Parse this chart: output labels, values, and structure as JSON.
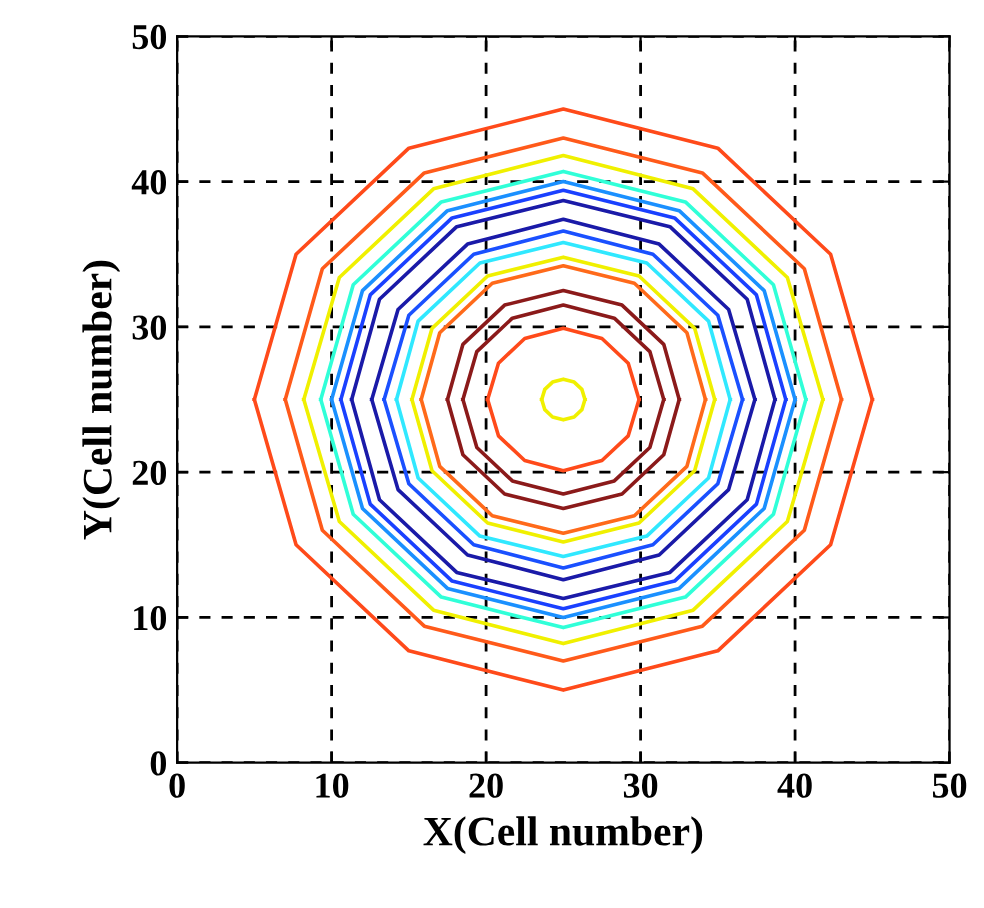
{
  "chart_data": {
    "type": "line",
    "xlabel": "X(Cell number)",
    "ylabel": "Y(Cell number)",
    "xlim": [
      0,
      50
    ],
    "ylim": [
      0,
      50
    ],
    "xticks": [
      0,
      10,
      20,
      30,
      40,
      50
    ],
    "yticks": [
      0,
      10,
      20,
      30,
      40,
      50
    ],
    "grid": true,
    "series": [
      {
        "color": "#ff4a1a",
        "x": [
          5,
          7.7,
          15,
          25,
          35,
          42.3,
          45
        ],
        "values": [
          25,
          35,
          42.3,
          45,
          42.3,
          35,
          25
        ]
      },
      {
        "color": "#ff4a1a",
        "x": [
          5,
          7.7,
          15,
          25,
          35,
          42.3,
          45
        ],
        "values": [
          25,
          15,
          7.7,
          5,
          7.7,
          15,
          25
        ]
      },
      {
        "color": "#ff5a1a",
        "x": [
          7,
          9.4,
          16,
          25,
          34,
          40.6,
          43
        ],
        "values": [
          25,
          34,
          40.6,
          43,
          40.6,
          34,
          25
        ]
      },
      {
        "color": "#ff5a1a",
        "x": [
          7,
          9.4,
          16,
          25,
          34,
          40.6,
          43
        ],
        "values": [
          25,
          16,
          9.4,
          7,
          9.4,
          16,
          25
        ]
      },
      {
        "color": "#f0f000",
        "x": [
          8.2,
          10.5,
          16.6,
          25,
          33.4,
          39.5,
          41.8
        ],
        "values": [
          25,
          33.4,
          39.5,
          41.8,
          39.5,
          33.4,
          25
        ]
      },
      {
        "color": "#f0f000",
        "x": [
          8.2,
          10.5,
          16.6,
          25,
          33.4,
          39.5,
          41.8
        ],
        "values": [
          25,
          16.6,
          10.5,
          8.2,
          10.5,
          16.6,
          25
        ]
      },
      {
        "color": "#30ffd8",
        "x": [
          9.3,
          11.4,
          17.1,
          25,
          32.9,
          38.6,
          40.7
        ],
        "values": [
          25,
          32.9,
          38.6,
          40.7,
          38.6,
          32.9,
          25
        ]
      },
      {
        "color": "#30ffd8",
        "x": [
          9.3,
          11.4,
          17.1,
          25,
          32.9,
          38.6,
          40.7
        ],
        "values": [
          25,
          17.1,
          11.4,
          9.3,
          11.4,
          17.1,
          25
        ]
      },
      {
        "color": "#1a90ff",
        "x": [
          10,
          12,
          17.5,
          25,
          32.5,
          38,
          40
        ],
        "values": [
          25,
          32.5,
          38,
          40,
          38,
          32.5,
          25
        ]
      },
      {
        "color": "#1a90ff",
        "x": [
          10,
          12,
          17.5,
          25,
          32.5,
          38,
          40
        ],
        "values": [
          25,
          17.5,
          12,
          10,
          12,
          17.5,
          25
        ]
      },
      {
        "color": "#1a40ff",
        "x": [
          10.6,
          12.5,
          17.8,
          25,
          32.2,
          37.5,
          39.4
        ],
        "values": [
          25,
          32.2,
          37.5,
          39.4,
          37.5,
          32.2,
          25
        ]
      },
      {
        "color": "#1a40ff",
        "x": [
          10.6,
          12.5,
          17.8,
          25,
          32.2,
          37.5,
          39.4
        ],
        "values": [
          25,
          17.8,
          12.5,
          10.6,
          12.5,
          17.8,
          25
        ]
      },
      {
        "color": "#1a1aa8",
        "x": [
          11.3,
          13.1,
          18.1,
          25,
          31.9,
          36.9,
          38.7
        ],
        "values": [
          25,
          31.9,
          36.9,
          38.7,
          36.9,
          31.9,
          25
        ]
      },
      {
        "color": "#1a1aa8",
        "x": [
          11.3,
          13.1,
          18.1,
          25,
          31.9,
          36.9,
          38.7
        ],
        "values": [
          25,
          18.1,
          13.1,
          11.3,
          13.1,
          18.1,
          25
        ]
      },
      {
        "color": "#1a1aa8",
        "x": [
          12.6,
          14.3,
          18.8,
          25,
          31.2,
          35.7,
          37.4
        ],
        "values": [
          25,
          31.2,
          35.7,
          37.4,
          35.7,
          31.2,
          25
        ]
      },
      {
        "color": "#1a1aa8",
        "x": [
          12.6,
          14.3,
          18.8,
          25,
          31.2,
          35.7,
          37.4
        ],
        "values": [
          25,
          18.8,
          14.3,
          12.6,
          14.3,
          18.8,
          25
        ]
      },
      {
        "color": "#1a50ff",
        "x": [
          13.4,
          15,
          19.2,
          25,
          30.8,
          35,
          36.6
        ],
        "values": [
          25,
          30.8,
          35,
          36.6,
          35,
          30.8,
          25
        ]
      },
      {
        "color": "#1a50ff",
        "x": [
          13.4,
          15,
          19.2,
          25,
          30.8,
          35,
          36.6
        ],
        "values": [
          25,
          19.2,
          15,
          13.4,
          15,
          19.2,
          25
        ]
      },
      {
        "color": "#30e8ff",
        "x": [
          14.2,
          15.6,
          19.6,
          25,
          30.4,
          34.4,
          35.8
        ],
        "values": [
          25,
          30.4,
          34.4,
          35.8,
          34.4,
          30.4,
          25
        ]
      },
      {
        "color": "#30e8ff",
        "x": [
          14.2,
          15.6,
          19.6,
          25,
          30.4,
          34.4,
          35.8
        ],
        "values": [
          25,
          19.6,
          15.6,
          14.2,
          15.6,
          19.6,
          25
        ]
      },
      {
        "color": "#f0f000",
        "x": [
          15.2,
          16.5,
          20.1,
          25,
          29.9,
          33.5,
          34.8
        ],
        "values": [
          25,
          29.9,
          33.5,
          34.8,
          33.5,
          29.9,
          25
        ]
      },
      {
        "color": "#f0f000",
        "x": [
          15.2,
          16.5,
          20.1,
          25,
          29.9,
          33.5,
          34.8
        ],
        "values": [
          25,
          20.1,
          16.5,
          15.2,
          16.5,
          20.1,
          25
        ]
      },
      {
        "color": "#ff6a1a",
        "x": [
          15.8,
          17,
          20.4,
          25,
          29.6,
          33,
          34.2
        ],
        "values": [
          25,
          29.6,
          33,
          34.2,
          33,
          29.6,
          25
        ]
      },
      {
        "color": "#ff6a1a",
        "x": [
          15.8,
          17,
          20.4,
          25,
          29.6,
          33,
          34.2
        ],
        "values": [
          25,
          20.4,
          17,
          15.8,
          17,
          20.4,
          25
        ]
      },
      {
        "color": "#8b1a1a",
        "x": [
          17.5,
          18.5,
          21.2,
          25,
          28.8,
          31.5,
          32.5
        ],
        "values": [
          25,
          28.8,
          31.5,
          32.5,
          31.5,
          28.8,
          25
        ]
      },
      {
        "color": "#8b1a1a",
        "x": [
          17.5,
          18.5,
          21.2,
          25,
          28.8,
          31.5,
          32.5
        ],
        "values": [
          25,
          21.2,
          18.5,
          17.5,
          18.5,
          21.2,
          25
        ]
      },
      {
        "color": "#8b1a1a",
        "x": [
          18.5,
          19.4,
          21.7,
          25,
          28.3,
          30.6,
          31.5
        ],
        "values": [
          25,
          28.3,
          30.6,
          31.5,
          30.6,
          28.3,
          25
        ]
      },
      {
        "color": "#8b1a1a",
        "x": [
          18.5,
          19.4,
          21.7,
          25,
          28.3,
          30.6,
          31.5
        ],
        "values": [
          25,
          21.7,
          19.4,
          18.5,
          19.4,
          21.7,
          25
        ]
      },
      {
        "color": "#ff4a1a",
        "x": [
          20.1,
          20.8,
          22.5,
          25,
          27.5,
          29.2,
          29.9
        ],
        "values": [
          25,
          27.5,
          29.2,
          29.9,
          29.2,
          27.5,
          25
        ]
      },
      {
        "color": "#ff4a1a",
        "x": [
          20.1,
          20.8,
          22.5,
          25,
          27.5,
          29.2,
          29.9
        ],
        "values": [
          25,
          22.5,
          20.8,
          20.1,
          20.8,
          22.5,
          25
        ]
      },
      {
        "color": "#f0f000",
        "x": [
          23.6,
          23.8,
          24.3,
          25,
          25.7,
          26.2,
          26.4
        ],
        "values": [
          25,
          25.7,
          26.2,
          26.4,
          26.2,
          25.7,
          25
        ]
      },
      {
        "color": "#f0f000",
        "x": [
          23.6,
          23.8,
          24.3,
          25,
          25.7,
          26.2,
          26.4
        ],
        "values": [
          25,
          24.3,
          23.8,
          23.6,
          23.8,
          24.3,
          25
        ]
      }
    ]
  }
}
